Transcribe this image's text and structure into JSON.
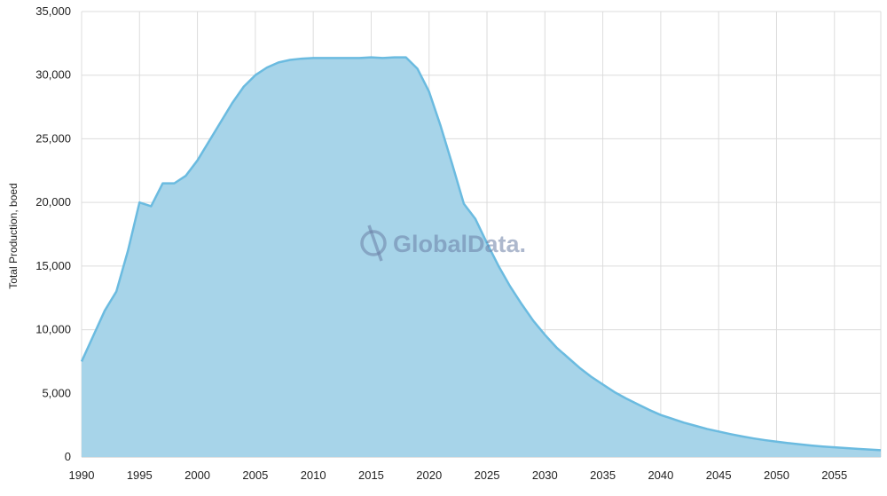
{
  "watermark": "GlobalData.",
  "chart_data": {
    "type": "area",
    "title": "",
    "xlabel": "",
    "ylabel": "Total Production, boed",
    "xlim": [
      1990,
      2059
    ],
    "ylim": [
      0,
      35000
    ],
    "x_ticks": [
      1990,
      1995,
      2000,
      2005,
      2010,
      2015,
      2020,
      2025,
      2030,
      2035,
      2040,
      2045,
      2050,
      2055
    ],
    "y_ticks": [
      0,
      5000,
      10000,
      15000,
      20000,
      25000,
      30000,
      35000
    ],
    "x_tick_labels": [
      "1990",
      "1995",
      "2000",
      "2005",
      "2010",
      "2015",
      "2020",
      "2025",
      "2030",
      "2035",
      "2040",
      "2045",
      "2050",
      "2055"
    ],
    "y_tick_labels": [
      "0",
      "5,000",
      "10,000",
      "15,000",
      "20,000",
      "25,000",
      "30,000",
      "35,000"
    ],
    "grid": true,
    "fill_color": "#a7d4e9",
    "line_color": "#6bbbe0",
    "x": [
      1990,
      1991,
      1992,
      1993,
      1994,
      1995,
      1996,
      1997,
      1998,
      1999,
      2000,
      2001,
      2002,
      2003,
      2004,
      2005,
      2006,
      2007,
      2008,
      2009,
      2010,
      2011,
      2012,
      2013,
      2014,
      2015,
      2016,
      2017,
      2018,
      2019,
      2020,
      2021,
      2022,
      2023,
      2024,
      2025,
      2026,
      2027,
      2028,
      2029,
      2030,
      2031,
      2032,
      2033,
      2034,
      2035,
      2036,
      2037,
      2038,
      2039,
      2040,
      2041,
      2042,
      2043,
      2044,
      2045,
      2046,
      2047,
      2048,
      2049,
      2050,
      2051,
      2052,
      2053,
      2054,
      2055,
      2056,
      2057,
      2058,
      2059
    ],
    "values": [
      7500,
      9500,
      11500,
      13000,
      16200,
      20000,
      19700,
      21500,
      21500,
      22100,
      23300,
      24800,
      26300,
      27800,
      29100,
      30000,
      30600,
      31000,
      31200,
      31300,
      31350,
      31350,
      31350,
      31350,
      31350,
      31400,
      31350,
      31400,
      31400,
      30500,
      28700,
      26000,
      23000,
      19900,
      18700,
      16800,
      15000,
      13400,
      12000,
      10700,
      9600,
      8600,
      7800,
      7000,
      6300,
      5700,
      5100,
      4600,
      4150,
      3700,
      3300,
      3000,
      2700,
      2450,
      2200,
      2000,
      1800,
      1620,
      1460,
      1320,
      1200,
      1090,
      990,
      900,
      820,
      760,
      700,
      640,
      580,
      530
    ]
  }
}
